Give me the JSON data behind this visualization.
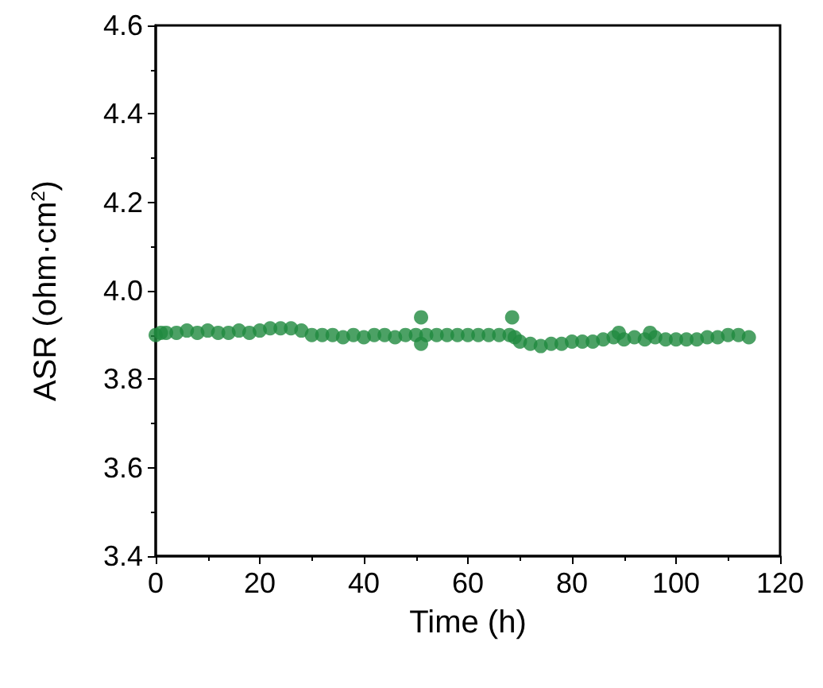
{
  "chart_data": {
    "type": "scatter",
    "xlabel": "Time (h)",
    "ylabel": "ASR (ohm·cm$^{2}$)",
    "x": [
      0,
      1,
      2,
      4,
      6,
      8,
      10,
      12,
      14,
      16,
      18,
      20,
      22,
      24,
      26,
      28,
      30,
      32,
      34,
      36,
      38,
      40,
      42,
      44,
      46,
      48,
      50,
      51,
      51,
      52,
      54,
      56,
      58,
      60,
      62,
      64,
      66,
      68,
      68.5,
      69,
      70,
      72,
      74,
      76,
      78,
      80,
      82,
      84,
      86,
      88,
      89,
      90,
      92,
      94,
      95,
      96,
      98,
      100,
      102,
      104,
      106,
      108,
      110,
      112,
      114
    ],
    "values": [
      3.9,
      3.905,
      3.905,
      3.905,
      3.91,
      3.905,
      3.91,
      3.905,
      3.905,
      3.91,
      3.905,
      3.91,
      3.915,
      3.915,
      3.915,
      3.91,
      3.9,
      3.9,
      3.9,
      3.895,
      3.9,
      3.895,
      3.9,
      3.9,
      3.895,
      3.9,
      3.9,
      3.94,
      3.88,
      3.9,
      3.9,
      3.9,
      3.9,
      3.9,
      3.9,
      3.9,
      3.9,
      3.9,
      3.94,
      3.895,
      3.885,
      3.88,
      3.875,
      3.88,
      3.88,
      3.885,
      3.885,
      3.885,
      3.89,
      3.895,
      3.905,
      3.89,
      3.895,
      3.89,
      3.905,
      3.895,
      3.89,
      3.89,
      3.89,
      3.89,
      3.895,
      3.895,
      3.9,
      3.9,
      3.895
    ],
    "color": "#1f8a3f",
    "marker": "circle",
    "xlim": [
      0,
      120
    ],
    "xticks": [
      0,
      20,
      40,
      60,
      80,
      100,
      120
    ],
    "ylim": [
      3.4,
      4.6
    ],
    "yticks": [
      3.4,
      3.6,
      3.8,
      {
        "value": 4,
        "label": "4.0"
      },
      4.2,
      4.4,
      4.6
    ],
    "grid": false
  }
}
